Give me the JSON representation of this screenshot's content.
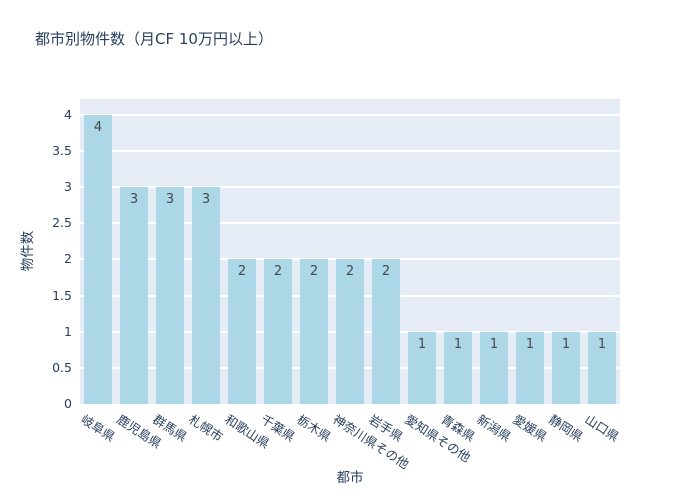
{
  "chart_data": {
    "type": "bar",
    "title": "都市別物件数（月CF 10万円以上）",
    "xlabel": "都市",
    "ylabel": "物件数",
    "categories": [
      "岐阜県",
      "鹿児島県",
      "群馬県",
      "札幌市",
      "和歌山県",
      "千葉県",
      "栃木県",
      "神奈川県その他",
      "岩手県",
      "愛知県その他",
      "青森県",
      "新潟県",
      "愛媛県",
      "静岡県",
      "山口県"
    ],
    "values": [
      4,
      3,
      3,
      3,
      2,
      2,
      2,
      2,
      2,
      1,
      1,
      1,
      1,
      1,
      1
    ],
    "ytick_labels": [
      "0",
      "0.5",
      "1",
      "1.5",
      "2",
      "2.5",
      "3",
      "3.5",
      "4"
    ],
    "ytick_values": [
      0,
      0.5,
      1,
      1.5,
      2,
      2.5,
      3,
      3.5,
      4
    ],
    "ylim": [
      0,
      4.22
    ],
    "grid": "on",
    "legend": "none",
    "colors": {
      "bar": "#abd7e6",
      "plot_background": "#e5ecf6",
      "gridline": "#ffffff",
      "axis_text": "#2a3f5f",
      "value_label": "#45484d",
      "page_background": "#ffffff"
    }
  }
}
